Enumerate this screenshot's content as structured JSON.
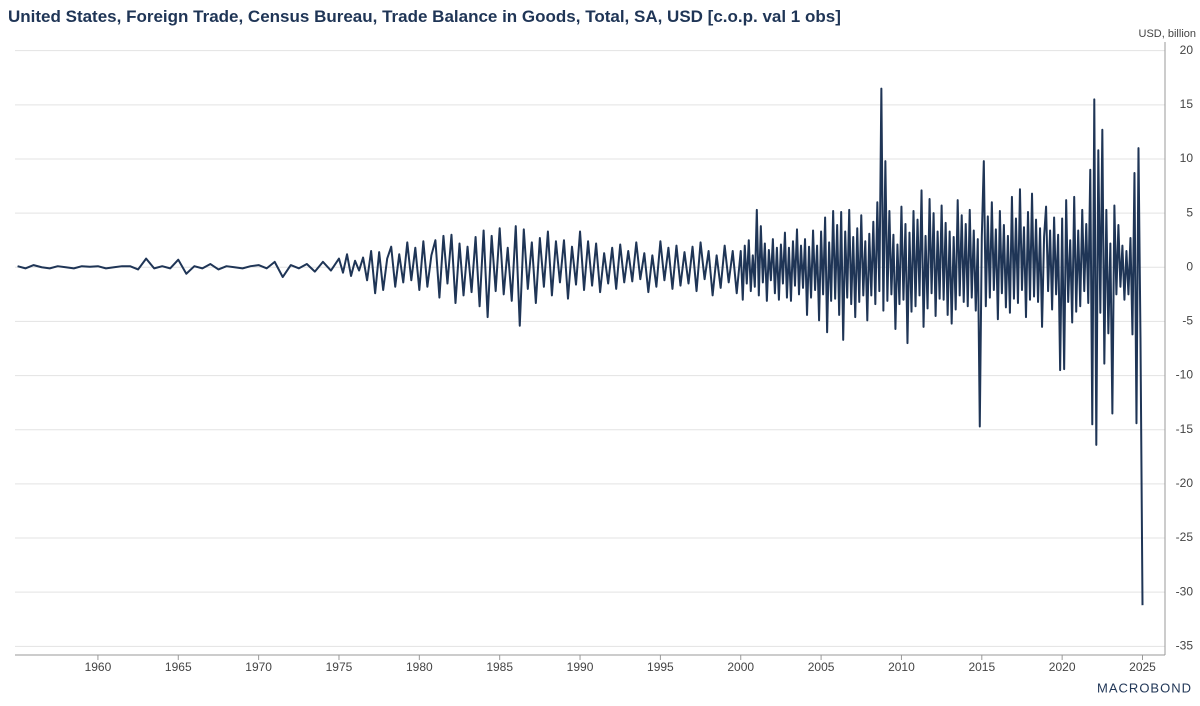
{
  "chart_data": {
    "type": "line",
    "title": "United States, Foreign Trade, Census Bureau, Trade Balance in Goods, Total, SA, USD [c.o.p. val 1 obs]",
    "y_label": "USD, billion",
    "source": "MACROBOND",
    "color": "#1f3556",
    "grid": true,
    "xlim": [
      1954.84,
      2026.4
    ],
    "ylim": [
      -35.8,
      20.8
    ],
    "xticks": [
      1960,
      1965,
      1970,
      1975,
      1980,
      1985,
      1990,
      1995,
      2000,
      2005,
      2010,
      2015,
      2020,
      2025
    ],
    "yticks": [
      20,
      15,
      10,
      5,
      0,
      -5,
      -10,
      -15,
      -20,
      -25,
      -30,
      -35
    ],
    "x": [
      1955,
      1955.5,
      1956,
      1956.5,
      1957,
      1957.5,
      1958,
      1958.5,
      1959,
      1959.5,
      1960,
      1960.5,
      1961,
      1961.5,
      1962,
      1962.5,
      1963,
      1963.5,
      1964,
      1964.5,
      1965,
      1965.5,
      1966,
      1966.5,
      1967,
      1967.5,
      1968,
      1968.5,
      1969,
      1969.5,
      1970,
      1970.5,
      1971,
      1971.5,
      1972,
      1972.5,
      1973,
      1973.5,
      1974,
      1974.5,
      1975,
      1975.25,
      1975.5,
      1975.75,
      1976,
      1976.25,
      1976.5,
      1976.75,
      1977,
      1977.25,
      1977.5,
      1977.75,
      1978,
      1978.25,
      1978.5,
      1978.75,
      1979,
      1979.25,
      1979.5,
      1979.75,
      1980,
      1980.25,
      1980.5,
      1980.75,
      1981,
      1981.25,
      1981.5,
      1981.75,
      1982,
      1982.25,
      1982.5,
      1982.75,
      1983,
      1983.25,
      1983.5,
      1983.75,
      1984,
      1984.25,
      1984.5,
      1984.75,
      1985,
      1985.25,
      1985.5,
      1985.75,
      1986,
      1986.25,
      1986.5,
      1986.75,
      1987,
      1987.25,
      1987.5,
      1987.75,
      1988,
      1988.25,
      1988.5,
      1988.75,
      1989,
      1989.25,
      1989.5,
      1989.75,
      1990,
      1990.25,
      1990.5,
      1990.75,
      1991,
      1991.25,
      1991.5,
      1991.75,
      1992,
      1992.25,
      1992.5,
      1992.75,
      1993,
      1993.25,
      1993.5,
      1993.75,
      1994,
      1994.25,
      1994.5,
      1994.75,
      1995,
      1995.25,
      1995.5,
      1995.75,
      1996,
      1996.25,
      1996.5,
      1996.75,
      1997,
      1997.25,
      1997.5,
      1997.75,
      1998,
      1998.25,
      1998.5,
      1998.75,
      1999,
      1999.25,
      1999.5,
      1999.75,
      2000,
      2000.125,
      2000.25,
      2000.375,
      2000.5,
      2000.625,
      2000.75,
      2000.875,
      2001,
      2001.125,
      2001.25,
      2001.375,
      2001.5,
      2001.625,
      2001.75,
      2001.875,
      2002,
      2002.125,
      2002.25,
      2002.375,
      2002.5,
      2002.625,
      2002.75,
      2002.875,
      2003,
      2003.125,
      2003.25,
      2003.375,
      2003.5,
      2003.625,
      2003.75,
      2003.875,
      2004,
      2004.125,
      2004.25,
      2004.375,
      2004.5,
      2004.625,
      2004.75,
      2004.875,
      2005,
      2005.125,
      2005.25,
      2005.375,
      2005.5,
      2005.625,
      2005.75,
      2005.875,
      2006,
      2006.125,
      2006.25,
      2006.375,
      2006.5,
      2006.625,
      2006.75,
      2006.875,
      2007,
      2007.125,
      2007.25,
      2007.375,
      2007.5,
      2007.625,
      2007.75,
      2007.875,
      2008,
      2008.125,
      2008.25,
      2008.375,
      2008.5,
      2008.625,
      2008.75,
      2008.875,
      2009,
      2009.125,
      2009.25,
      2009.375,
      2009.5,
      2009.625,
      2009.75,
      2009.875,
      2010,
      2010.125,
      2010.25,
      2010.375,
      2010.5,
      2010.625,
      2010.75,
      2010.875,
      2011,
      2011.125,
      2011.25,
      2011.375,
      2011.5,
      2011.625,
      2011.75,
      2011.875,
      2012,
      2012.125,
      2012.25,
      2012.375,
      2012.5,
      2012.625,
      2012.75,
      2012.875,
      2013,
      2013.125,
      2013.25,
      2013.375,
      2013.5,
      2013.625,
      2013.75,
      2013.875,
      2014,
      2014.125,
      2014.25,
      2014.375,
      2014.5,
      2014.625,
      2014.75,
      2014.875,
      2015,
      2015.125,
      2015.25,
      2015.375,
      2015.5,
      2015.625,
      2015.75,
      2015.875,
      2016,
      2016.125,
      2016.25,
      2016.375,
      2016.5,
      2016.625,
      2016.75,
      2016.875,
      2017,
      2017.125,
      2017.25,
      2017.375,
      2017.5,
      2017.625,
      2017.75,
      2017.875,
      2018,
      2018.125,
      2018.25,
      2018.375,
      2018.5,
      2018.625,
      2018.75,
      2018.875,
      2019,
      2019.125,
      2019.25,
      2019.375,
      2019.5,
      2019.625,
      2019.75,
      2019.875,
      2020,
      2020.125,
      2020.25,
      2020.375,
      2020.5,
      2020.625,
      2020.75,
      2020.875,
      2021,
      2021.125,
      2021.25,
      2021.375,
      2021.5,
      2021.625,
      2021.75,
      2021.875,
      2022,
      2022.125,
      2022.25,
      2022.375,
      2022.5,
      2022.625,
      2022.75,
      2022.875,
      2023,
      2023.125,
      2023.25,
      2023.375,
      2023.5,
      2023.625,
      2023.75,
      2023.875,
      2024,
      2024.125,
      2024.25,
      2024.375,
      2024.5,
      2024.625,
      2024.75,
      2024.875,
      2025
    ],
    "values": [
      0.1,
      -0.1,
      0.2,
      0,
      -0.1,
      0.1,
      0,
      -0.1,
      0.1,
      0.05,
      0.1,
      -0.1,
      0,
      0.1,
      0.1,
      -0.2,
      0.8,
      -0.1,
      0.1,
      -0.1,
      0.7,
      -0.6,
      0.1,
      -0.1,
      0.3,
      -0.2,
      0.1,
      0,
      -0.1,
      0.1,
      0.2,
      -0.1,
      0.5,
      -0.9,
      0.2,
      -0.1,
      0.3,
      -0.4,
      0.5,
      -0.3,
      0.8,
      -0.5,
      1.2,
      -0.8,
      0.6,
      -0.3,
      0.9,
      -1.2,
      1.5,
      -2.4,
      1.4,
      -2.1,
      0.8,
      1.9,
      -1.8,
      1.2,
      -1.4,
      2.3,
      -1.2,
      1.8,
      -2.1,
      2.4,
      -1.8,
      1.1,
      2.5,
      -2.8,
      2.9,
      -1.5,
      3.0,
      -3.3,
      2.2,
      -2.6,
      1.9,
      -2.3,
      2.8,
      -3.6,
      3.4,
      -4.6,
      2.9,
      -2.2,
      3.6,
      -2.5,
      1.8,
      -3.1,
      3.8,
      -5.4,
      3.5,
      -2.0,
      2.3,
      -3.3,
      2.7,
      -1.8,
      3.3,
      -2.6,
      2.4,
      -1.4,
      2.5,
      -2.9,
      1.9,
      -1.6,
      3.3,
      -2.1,
      2.4,
      -1.7,
      2.2,
      -2.3,
      1.3,
      -1.5,
      1.8,
      -2.0,
      2.1,
      -1.4,
      1.5,
      -1.3,
      2.3,
      -1.1,
      1.3,
      -2.3,
      1.1,
      -1.8,
      2.4,
      -1.2,
      1.8,
      -2.0,
      2.0,
      -1.7,
      1.4,
      -1.5,
      1.9,
      -2.2,
      2.3,
      -1.1,
      1.5,
      -2.6,
      1.1,
      -1.9,
      2.0,
      -1.4,
      1.5,
      -2.4,
      1.5,
      -3.0,
      2.0,
      -1.5,
      2.5,
      -2.2,
      1.1,
      -1.8,
      5.3,
      -2.6,
      3.8,
      -1.4,
      2.2,
      -3.1,
      1.6,
      -1.2,
      2.6,
      -2.4,
      1.8,
      -3.0,
      2.1,
      -1.5,
      3.2,
      -2.8,
      1.8,
      -3.1,
      2.4,
      -1.7,
      3.5,
      -2.5,
      2.0,
      -1.9,
      2.6,
      -4.4,
      1.9,
      -2.8,
      3.4,
      -2.1,
      2.0,
      -4.9,
      3.3,
      -2.5,
      4.6,
      -6.0,
      2.3,
      -3.1,
      5.2,
      -2.9,
      3.9,
      -4.4,
      5.1,
      -6.7,
      3.3,
      -2.8,
      5.3,
      -3.4,
      2.8,
      -4.6,
      3.6,
      -3.2,
      4.8,
      -2.6,
      2.4,
      -4.9,
      3.1,
      -2.6,
      4.2,
      -3.4,
      6.0,
      -2.2,
      16.5,
      -4.0,
      9.8,
      -3.1,
      5.2,
      -2.5,
      3.0,
      -5.7,
      2.1,
      -3.4,
      5.6,
      -3.0,
      4.0,
      -7.0,
      3.2,
      -4.1,
      5.2,
      -3.6,
      4.4,
      -2.6,
      7.1,
      -5.5,
      2.9,
      -3.8,
      6.3,
      -2.4,
      5.0,
      -4.5,
      3.3,
      -2.9,
      5.7,
      -3.0,
      4.1,
      -4.4,
      3.3,
      -5.2,
      2.8,
      -3.9,
      6.2,
      -2.6,
      4.8,
      -3.2,
      4.0,
      -3.6,
      5.3,
      -2.8,
      3.4,
      -4.0,
      2.6,
      -14.7,
      2.8,
      9.8,
      -3.6,
      4.7,
      -2.8,
      6.0,
      -2.1,
      3.5,
      -4.8,
      5.2,
      -2.4,
      3.9,
      -3.7,
      2.9,
      -4.2,
      6.5,
      -2.9,
      4.5,
      -3.3,
      7.2,
      -2.1,
      3.7,
      -4.6,
      5.1,
      -3.0,
      6.8,
      -2.7,
      4.4,
      -3.2,
      3.6,
      -5.5,
      2.8,
      5.6,
      -2.2,
      3.4,
      -3.9,
      4.6,
      -2.5,
      3.0,
      -9.5,
      4.5,
      -9.4,
      6.2,
      -3.2,
      2.5,
      -5.1,
      6.5,
      -4.1,
      3.4,
      -3.6,
      5.3,
      -2.2,
      4.0,
      -3.3,
      9.0,
      -14.5,
      15.5,
      -16.4,
      10.8,
      -4.2,
      12.7,
      -8.9,
      5.3,
      -6.1,
      2.2,
      -13.5,
      5.7,
      -2.5,
      3.9,
      -1.8,
      2.0,
      -3.0,
      1.5,
      -2.5,
      2.7,
      -6.2,
      8.7,
      -14.4,
      11.0,
      -6.6,
      -31.2
    ]
  }
}
